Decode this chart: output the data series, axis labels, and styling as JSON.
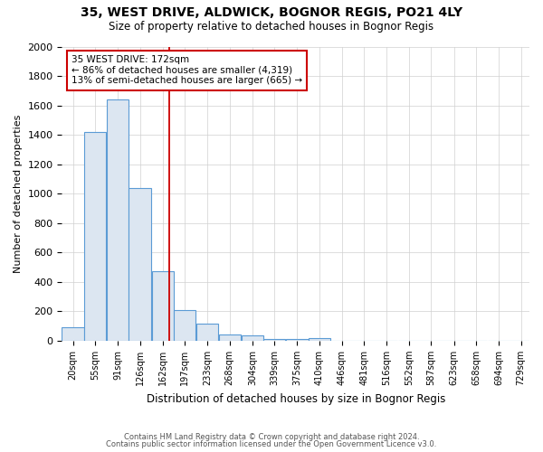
{
  "title": "35, WEST DRIVE, ALDWICK, BOGNOR REGIS, PO21 4LY",
  "subtitle": "Size of property relative to detached houses in Bognor Regis",
  "xlabel": "Distribution of detached houses by size in Bognor Regis",
  "ylabel": "Number of detached properties",
  "footnote1": "Contains HM Land Registry data © Crown copyright and database right 2024.",
  "footnote2": "Contains public sector information licensed under the Open Government Licence v3.0.",
  "annotation_line1": "35 WEST DRIVE: 172sqm",
  "annotation_line2": "← 86% of detached houses are smaller (4,319)",
  "annotation_line3": "13% of semi-detached houses are larger (665) →",
  "property_size": 172,
  "bar_edge_color": "#5b9bd5",
  "bar_face_color": "#dce6f1",
  "vline_color": "#cc0000",
  "annotation_box_color": "#ffffff",
  "annotation_box_edge": "#cc0000",
  "grid_color": "#d0d0d0",
  "background_color": "#ffffff",
  "categories": [
    "20sqm",
    "55sqm",
    "91sqm",
    "126sqm",
    "162sqm",
    "197sqm",
    "233sqm",
    "268sqm",
    "304sqm",
    "339sqm",
    "375sqm",
    "410sqm",
    "446sqm",
    "481sqm",
    "516sqm",
    "552sqm",
    "587sqm",
    "623sqm",
    "658sqm",
    "694sqm",
    "729sqm"
  ],
  "bin_edges": [
    2.5,
    37.5,
    72.5,
    108.5,
    143.5,
    179.5,
    214.5,
    250.5,
    285.5,
    321.5,
    356.5,
    392.5,
    427.5,
    462.5,
    497.5,
    532.5,
    567.5,
    602.5,
    637.5,
    672.5,
    707.5,
    742.5
  ],
  "values": [
    90,
    1420,
    1640,
    1040,
    470,
    210,
    115,
    45,
    35,
    15,
    12,
    20,
    0,
    0,
    0,
    0,
    0,
    0,
    0,
    0,
    0
  ],
  "bin_centers": [
    20,
    55,
    91,
    126,
    162,
    197,
    233,
    268,
    304,
    339,
    375,
    410,
    446,
    481,
    516,
    552,
    587,
    623,
    658,
    694,
    729
  ],
  "title_fontsize": 10,
  "subtitle_fontsize": 8.5,
  "ylabel_fontsize": 8,
  "xlabel_fontsize": 8.5,
  "ytick_fontsize": 8,
  "xtick_fontsize": 7,
  "footnote_fontsize": 6,
  "annotation_fontsize": 7.5
}
